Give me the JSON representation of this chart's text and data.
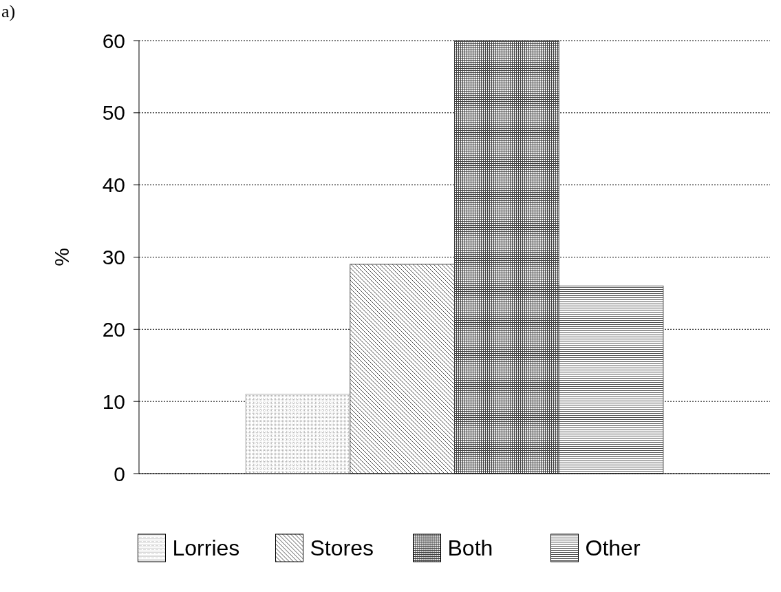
{
  "chart_data": {
    "type": "bar",
    "categories": [
      null
    ],
    "ylabel": "%",
    "ylim": [
      0,
      60
    ],
    "yticks": [
      0,
      10,
      20,
      30,
      40,
      50,
      60
    ],
    "grid": "y",
    "legend": "bottom",
    "annotations": [
      "a)"
    ],
    "series": [
      {
        "name": "Lorries",
        "color": "#b0b0b0",
        "values": [
          11
        ]
      },
      {
        "name": "Stores",
        "color": "#505050",
        "values": [
          29
        ]
      },
      {
        "name": "Both",
        "color": "#404040",
        "values": [
          60
        ]
      },
      {
        "name": "Other",
        "color": "#505050",
        "values": [
          26
        ]
      }
    ]
  }
}
